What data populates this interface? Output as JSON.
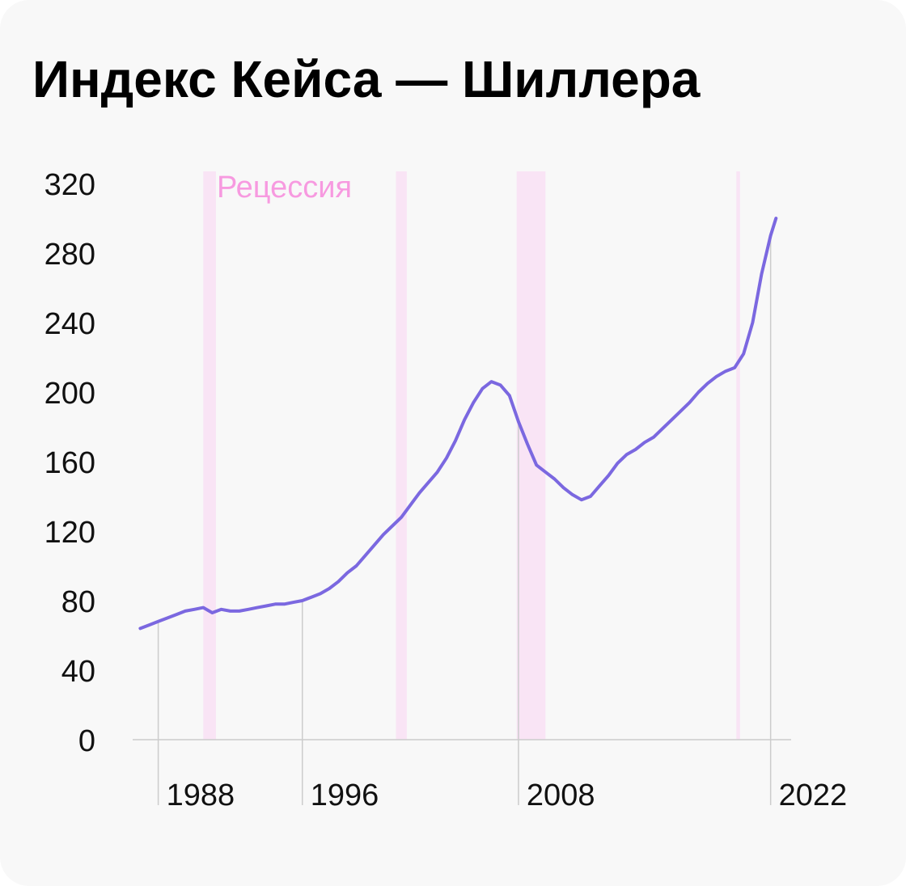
{
  "chart_data": {
    "type": "line",
    "title": "Индекс Кейса — Шиллера",
    "xlabel": "",
    "ylabel": "",
    "ylim": [
      0,
      330
    ],
    "xlim": [
      1986.4,
      2022.6
    ],
    "y_ticks": [
      0,
      40,
      80,
      120,
      160,
      200,
      240,
      280,
      320
    ],
    "x_ticks": [
      1988,
      1996,
      2008,
      2022
    ],
    "grid": "vertical lines at x ticks",
    "legend": "none",
    "annotation": "Рецессия",
    "recessions": [
      {
        "start": 1990.5,
        "end": 1991.2
      },
      {
        "start": 2001.2,
        "end": 2001.8
      },
      {
        "start": 2007.9,
        "end": 2009.5
      },
      {
        "start": 2020.1,
        "end": 2020.3
      }
    ],
    "colors": {
      "line": "#7b68e0",
      "recession": "#f9e4f5",
      "annotation": "#f79ae0",
      "grid": "#cccccc"
    },
    "series": [
      {
        "x": [
          1987.0,
          1987.5,
          1988.0,
          1988.5,
          1989.0,
          1989.5,
          1990.0,
          1990.5,
          1991.0,
          1991.5,
          1992.0,
          1992.5,
          1993.0,
          1993.5,
          1994.0,
          1994.5,
          1995.0,
          1995.5,
          1996.0,
          1996.5,
          1997.0,
          1997.5,
          1998.0,
          1998.5,
          1999.0,
          1999.5,
          2000.0,
          2000.5,
          2001.0,
          2001.5,
          2002.0,
          2002.5,
          2003.0,
          2003.5,
          2004.0,
          2004.5,
          2005.0,
          2005.5,
          2006.0,
          2006.5,
          2007.0,
          2007.5,
          2008.0,
          2008.5,
          2009.0,
          2009.5,
          2010.0,
          2010.5,
          2011.0,
          2011.5,
          2012.0,
          2012.5,
          2013.0,
          2013.5,
          2014.0,
          2014.5,
          2015.0,
          2015.5,
          2016.0,
          2016.5,
          2017.0,
          2017.5,
          2018.0,
          2018.5,
          2019.0,
          2019.5,
          2020.0,
          2020.5,
          2021.0,
          2021.5,
          2022.0,
          2022.3
        ],
        "values": [
          64,
          66,
          68,
          70,
          72,
          74,
          75,
          76,
          73,
          75,
          74,
          74,
          75,
          76,
          77,
          78,
          78,
          79,
          80,
          82,
          84,
          87,
          91,
          96,
          100,
          106,
          112,
          118,
          123,
          128,
          135,
          142,
          148,
          154,
          162,
          172,
          184,
          194,
          202,
          206,
          204,
          198,
          183,
          170,
          158,
          154,
          150,
          145,
          141,
          138,
          140,
          146,
          152,
          159,
          164,
          167,
          171,
          174,
          179,
          184,
          189,
          194,
          200,
          205,
          209,
          212,
          214,
          222,
          240,
          268,
          290,
          300
        ]
      }
    ]
  }
}
